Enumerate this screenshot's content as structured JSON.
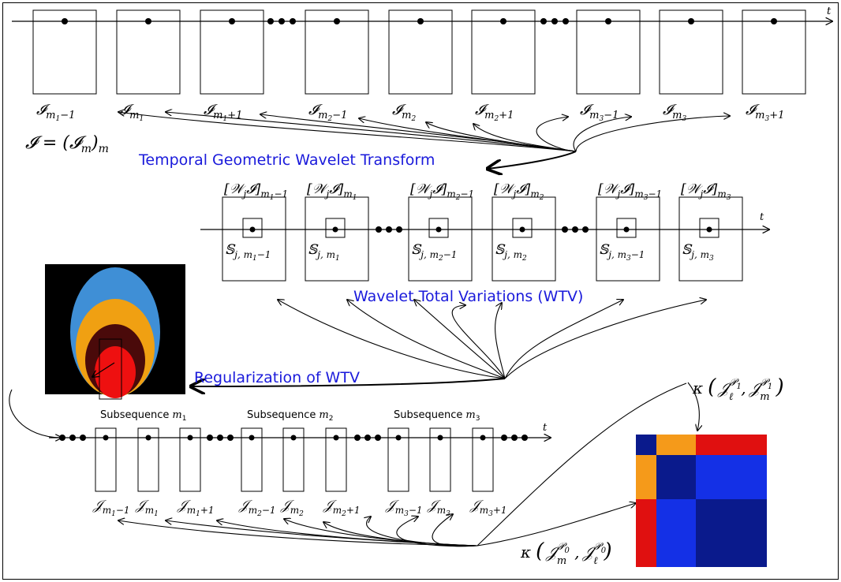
{
  "axis_label": "t",
  "top_sequence": {
    "frames": [
      {
        "base": "𝓘",
        "sub": "m",
        "subsub": "1",
        "suffix": "−1"
      },
      {
        "base": "𝓘",
        "sub": "m",
        "subsub": "1",
        "suffix": ""
      },
      {
        "base": "𝓘",
        "sub": "m",
        "subsub": "1",
        "suffix": "+1"
      },
      {
        "base": "𝓘",
        "sub": "m",
        "subsub": "2",
        "suffix": "−1"
      },
      {
        "base": "𝓘",
        "sub": "m",
        "subsub": "2",
        "suffix": ""
      },
      {
        "base": "𝓘",
        "sub": "m",
        "subsub": "2",
        "suffix": "+1"
      },
      {
        "base": "𝓘",
        "sub": "m",
        "subsub": "3",
        "suffix": "−1"
      },
      {
        "base": "𝓘",
        "sub": "m",
        "subsub": "3",
        "suffix": ""
      },
      {
        "base": "𝓘",
        "sub": "m",
        "subsub": "3",
        "suffix": "+1"
      }
    ],
    "sequence_def": {
      "lhs": "𝓘 = (𝓘",
      "sub": "m",
      "close": ")",
      "outer": "m"
    }
  },
  "process_labels": {
    "tgwt": "Temporal Geometric Wavelet Transform",
    "wtv": "Wavelet Total Variations (WTV)",
    "reg": "Regularization of WTV"
  },
  "wavelet_sequence": {
    "frames": [
      {
        "top": "[𝒲",
        "j": "j",
        "top2": "𝓘]",
        "sub": "m",
        "subsub": "1",
        "suffix": "−1",
        "s": "𝕊",
        "ssub": "j, m",
        "ssubsub": "1",
        "ssuffix": "−1"
      },
      {
        "top": "[𝒲",
        "j": "j",
        "top2": "𝓘]",
        "sub": "m",
        "subsub": "1",
        "suffix": "",
        "s": "𝕊",
        "ssub": "j, m",
        "ssubsub": "1",
        "ssuffix": ""
      },
      {
        "top": "[𝒲",
        "j": "j",
        "top2": "𝓘]",
        "sub": "m",
        "subsub": "2",
        "suffix": "−1",
        "s": "𝕊",
        "ssub": "j, m",
        "ssubsub": "2",
        "ssuffix": "−1"
      },
      {
        "top": "[𝒲",
        "j": "j",
        "top2": "𝓘]",
        "sub": "m",
        "subsub": "2",
        "suffix": "",
        "s": "𝕊",
        "ssub": "j, m",
        "ssubsub": "2",
        "ssuffix": ""
      },
      {
        "top": "[𝒲",
        "j": "j",
        "top2": "𝓘]",
        "sub": "m",
        "subsub": "3",
        "suffix": "−1",
        "s": "𝕊",
        "ssub": "j, m",
        "ssubsub": "3",
        "ssuffix": "−1"
      },
      {
        "top": "[𝒲",
        "j": "j",
        "top2": "𝓘]",
        "sub": "m",
        "subsub": "3",
        "suffix": "",
        "s": "𝕊",
        "ssub": "j, m",
        "ssubsub": "3",
        "ssuffix": ""
      }
    ]
  },
  "subsequences": [
    {
      "label": "Subsequence",
      "sub": "m",
      "subsub": "1"
    },
    {
      "label": "Subsequence",
      "sub": "m",
      "subsub": "2"
    },
    {
      "label": "Subsequence",
      "sub": "m",
      "subsub": "3"
    }
  ],
  "bottom_sequence": {
    "frames": [
      {
        "base": "𝒥",
        "sub": "m",
        "subsub": "1",
        "suffix": "−1"
      },
      {
        "base": "𝒥",
        "sub": "m",
        "subsub": "1",
        "suffix": ""
      },
      {
        "base": "𝒥",
        "sub": "m",
        "subsub": "1",
        "suffix": "+1"
      },
      {
        "base": "𝒥",
        "sub": "m",
        "subsub": "2",
        "suffix": "−1"
      },
      {
        "base": "𝒥",
        "sub": "m",
        "subsub": "2",
        "suffix": ""
      },
      {
        "base": "𝒥",
        "sub": "m",
        "subsub": "2",
        "suffix": "+1"
      },
      {
        "base": "𝒥",
        "sub": "m",
        "subsub": "3",
        "suffix": "−1"
      },
      {
        "base": "𝒥",
        "sub": "m",
        "subsub": "3",
        "suffix": ""
      },
      {
        "base": "𝒥",
        "sub": "m",
        "subsub": "3",
        "suffix": "+1"
      }
    ]
  },
  "kernels": {
    "top": {
      "k": "κ",
      "open": "(",
      "a": "𝒥",
      "a_sub": "ℓ",
      "a_sup": "𝒫",
      "a_supsub": "1",
      "sep": ",",
      "b": "𝒥",
      "b_sub": "m",
      "b_sup": "𝒫",
      "b_supsub": "1",
      "close": ")"
    },
    "bottom": {
      "k": "κ",
      "open": "(",
      "a": "𝒥",
      "a_sub": "m",
      "a_sup": "𝒫",
      "a_supsub": "0",
      "sep": ",",
      "b": "𝒥",
      "b_sub": "ℓ",
      "b_sup": "𝒫",
      "b_supsub": "0",
      "close": ")"
    }
  },
  "colors": {
    "heat_blue": "#1430e6",
    "heat_navy": "#0a1a8c",
    "heat_red": "#e01010",
    "heat_orange": "#f59a1a",
    "fire_blue": "#3f8fd6",
    "fire_orange": "#f0a012",
    "fire_dark": "#4a0a0a",
    "fire_red": "#ee1010"
  }
}
